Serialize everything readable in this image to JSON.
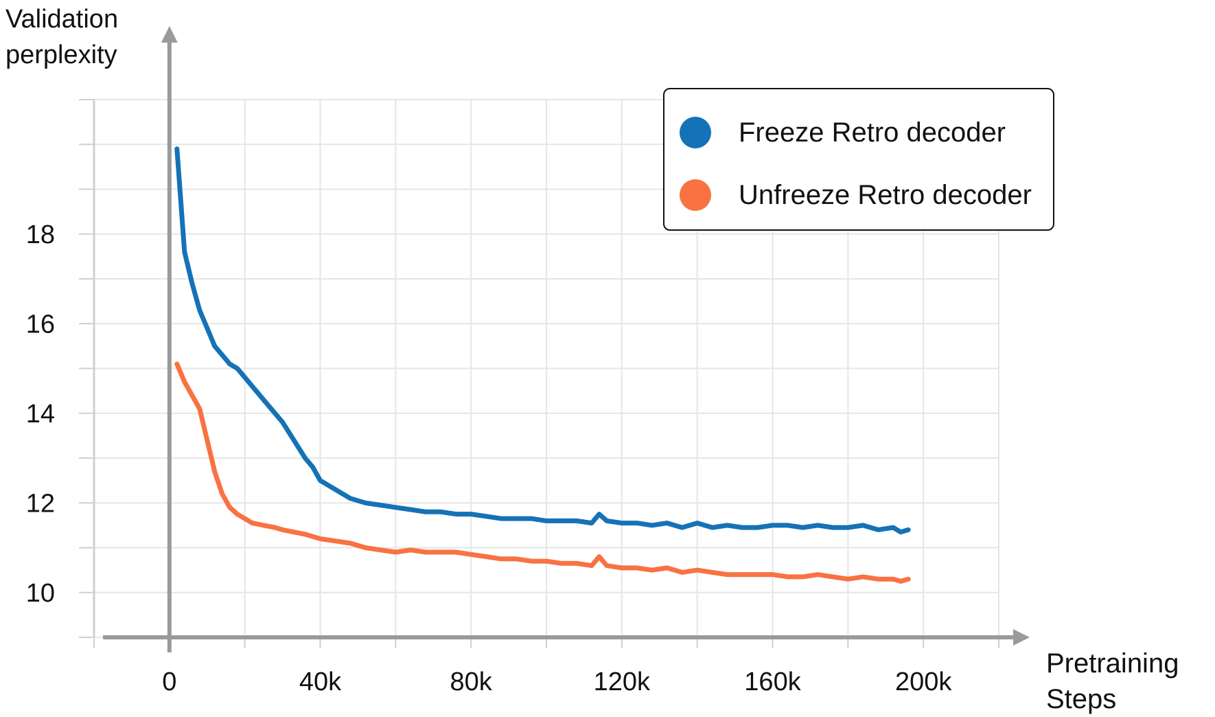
{
  "chart_data": {
    "type": "line",
    "ylabel": "Validation\nperplexity",
    "ylabel_lines": [
      "Validation",
      "perplexity"
    ],
    "xlabel_lines": [
      "Pretraining",
      "Steps"
    ],
    "xlim": [
      -20000,
      220000
    ],
    "ylim": [
      9,
      21
    ],
    "x_ticks": [
      0,
      40000,
      80000,
      120000,
      160000,
      200000
    ],
    "x_tick_labels": [
      "0",
      "40k",
      "80k",
      "120k",
      "160k",
      "200k"
    ],
    "y_ticks": [
      10,
      12,
      14,
      16,
      18
    ],
    "y_tick_labels": [
      "10",
      "12",
      "14",
      "16",
      "18"
    ],
    "grid": true,
    "legend_position": "top-right",
    "series": [
      {
        "name": "Freeze Retro decoder",
        "color": "#1572b6",
        "x": [
          2000,
          4000,
          6000,
          8000,
          10000,
          12000,
          14000,
          16000,
          18000,
          20000,
          22000,
          25000,
          28000,
          30000,
          33000,
          36000,
          38000,
          40000,
          44000,
          48000,
          52000,
          56000,
          60000,
          64000,
          68000,
          72000,
          76000,
          80000,
          84000,
          88000,
          92000,
          96000,
          100000,
          104000,
          108000,
          112000,
          114000,
          116000,
          120000,
          124000,
          128000,
          132000,
          136000,
          140000,
          144000,
          148000,
          152000,
          156000,
          160000,
          164000,
          168000,
          172000,
          176000,
          180000,
          184000,
          188000,
          192000,
          194000,
          196000
        ],
        "y": [
          19.9,
          17.6,
          16.9,
          16.3,
          15.9,
          15.5,
          15.3,
          15.1,
          15.0,
          14.8,
          14.6,
          14.3,
          14.0,
          13.8,
          13.4,
          13.0,
          12.8,
          12.5,
          12.3,
          12.1,
          12.0,
          11.95,
          11.9,
          11.85,
          11.8,
          11.8,
          11.75,
          11.75,
          11.7,
          11.65,
          11.65,
          11.65,
          11.6,
          11.6,
          11.6,
          11.55,
          11.75,
          11.6,
          11.55,
          11.55,
          11.5,
          11.55,
          11.45,
          11.55,
          11.45,
          11.5,
          11.45,
          11.45,
          11.5,
          11.5,
          11.45,
          11.5,
          11.45,
          11.45,
          11.5,
          11.4,
          11.45,
          11.35,
          11.4
        ]
      },
      {
        "name": "Unfreeze Retro decoder",
        "color": "#f97242",
        "x": [
          2000,
          4000,
          6000,
          8000,
          10000,
          12000,
          14000,
          16000,
          18000,
          20000,
          22000,
          25000,
          28000,
          30000,
          33000,
          36000,
          38000,
          40000,
          44000,
          48000,
          52000,
          56000,
          60000,
          64000,
          68000,
          72000,
          76000,
          80000,
          84000,
          88000,
          92000,
          96000,
          100000,
          104000,
          108000,
          112000,
          114000,
          116000,
          120000,
          124000,
          128000,
          132000,
          136000,
          140000,
          144000,
          148000,
          152000,
          156000,
          160000,
          164000,
          168000,
          172000,
          176000,
          180000,
          184000,
          188000,
          192000,
          194000,
          196000
        ],
        "y": [
          15.1,
          14.7,
          14.4,
          14.1,
          13.4,
          12.7,
          12.2,
          11.9,
          11.75,
          11.65,
          11.55,
          11.5,
          11.45,
          11.4,
          11.35,
          11.3,
          11.25,
          11.2,
          11.15,
          11.1,
          11.0,
          10.95,
          10.9,
          10.95,
          10.9,
          10.9,
          10.9,
          10.85,
          10.8,
          10.75,
          10.75,
          10.7,
          10.7,
          10.65,
          10.65,
          10.6,
          10.8,
          10.6,
          10.55,
          10.55,
          10.5,
          10.55,
          10.45,
          10.5,
          10.45,
          10.4,
          10.4,
          10.4,
          10.4,
          10.35,
          10.35,
          10.4,
          10.35,
          10.3,
          10.35,
          10.3,
          10.3,
          10.25,
          10.3
        ]
      }
    ]
  }
}
